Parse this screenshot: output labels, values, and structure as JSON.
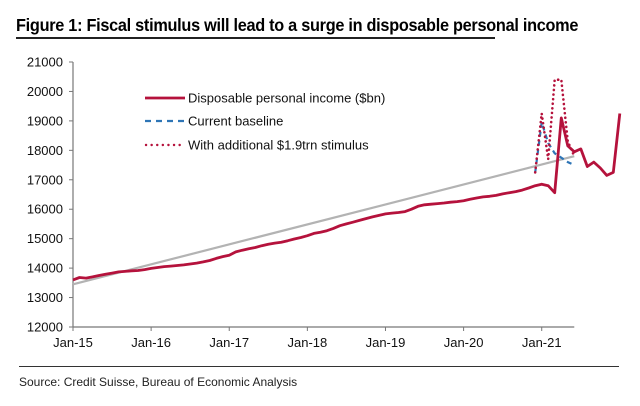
{
  "figure": {
    "title": "Figure 1: Fiscal stimulus will lead to a surge in disposable personal income",
    "source": "Source: Credit Suisse, Bureau of Economic Analysis"
  },
  "chart_data": {
    "type": "line",
    "title": "Figure 1: Fiscal stimulus will lead to a surge in disposable personal income",
    "xlabel": "",
    "ylabel": "",
    "ylim": [
      12000,
      21000
    ],
    "yticks": [
      12000,
      13000,
      14000,
      15000,
      16000,
      17000,
      18000,
      19000,
      20000,
      21000
    ],
    "xlim": [
      "2015-01",
      "2021-06"
    ],
    "xticks": [
      "Jan-15",
      "Jan-16",
      "Jan-17",
      "Jan-18",
      "Jan-19",
      "Jan-20",
      "Jan-21"
    ],
    "grid": false,
    "legend_position": "top-left",
    "colors": {
      "income": "#b5123c",
      "baseline": "#2e75b6",
      "stimulus": "#b5123c",
      "trend": "#b3b3b3"
    },
    "series": [
      {
        "name": "Disposable personal income ($bn)",
        "style": "solid",
        "start": "2015-01",
        "values": [
          13600,
          13680,
          13660,
          13700,
          13750,
          13790,
          13830,
          13870,
          13890,
          13910,
          13920,
          13950,
          13990,
          14020,
          14050,
          14070,
          14090,
          14110,
          14140,
          14170,
          14210,
          14260,
          14330,
          14390,
          14440,
          14550,
          14610,
          14660,
          14700,
          14760,
          14810,
          14850,
          14880,
          14930,
          14990,
          15040,
          15100,
          15180,
          15220,
          15270,
          15350,
          15440,
          15500,
          15560,
          15620,
          15680,
          15740,
          15790,
          15840,
          15870,
          15890,
          15920,
          16000,
          16100,
          16150,
          16170,
          16190,
          16210,
          16240,
          16260,
          16290,
          16340,
          16380,
          16420,
          16440,
          16470,
          16520,
          16560,
          16600,
          16650,
          16720,
          16800,
          16850,
          16800,
          16560,
          19100,
          18150,
          17950,
          18050,
          17450,
          17600,
          17400,
          17150,
          17250,
          19250
        ]
      },
      {
        "name": "Current baseline",
        "style": "dashed",
        "start": "2020-12",
        "values": [
          17250,
          18950,
          18250,
          17900,
          17750,
          17600,
          17500
        ]
      },
      {
        "name": "With additional $1.9trn stimulus",
        "style": "dotted",
        "start": "2020-12",
        "values": [
          17250,
          19250,
          17700,
          20400,
          20400,
          18300,
          17800
        ]
      },
      {
        "name": "Trend",
        "style": "solid-grey",
        "start": "2015-01",
        "end": "2021-06",
        "values_endpoints": [
          13450,
          17800
        ]
      }
    ]
  }
}
